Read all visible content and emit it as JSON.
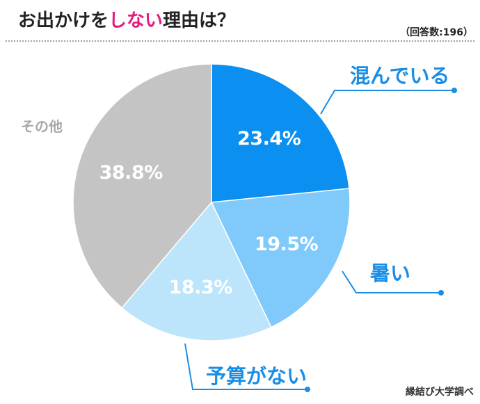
{
  "chart_data": {
    "type": "pie",
    "title_parts": [
      "お出かけを",
      "しない",
      "理由は？"
    ],
    "subtitle": "（回答数:196）",
    "source": "縁結び大学調べ",
    "categories": [
      "混んでいる",
      "暑い",
      "予算がない",
      "その他"
    ],
    "values": [
      23.4,
      19.5,
      18.3,
      38.8
    ],
    "value_labels": [
      "23.4%",
      "19.5%",
      "18.3%",
      "38.8%"
    ],
    "colors": [
      "#0b8ff0",
      "#80c9fb",
      "#bce5fc",
      "#c4c4c4"
    ]
  },
  "colors": {
    "title_text": "#222222",
    "highlight": "#e5197f",
    "callout": "#1a8ee6",
    "other_label": "#a8a8a8",
    "value_label": "#ffffff",
    "rule": "#a0a0a0",
    "background": "#ffffff"
  }
}
